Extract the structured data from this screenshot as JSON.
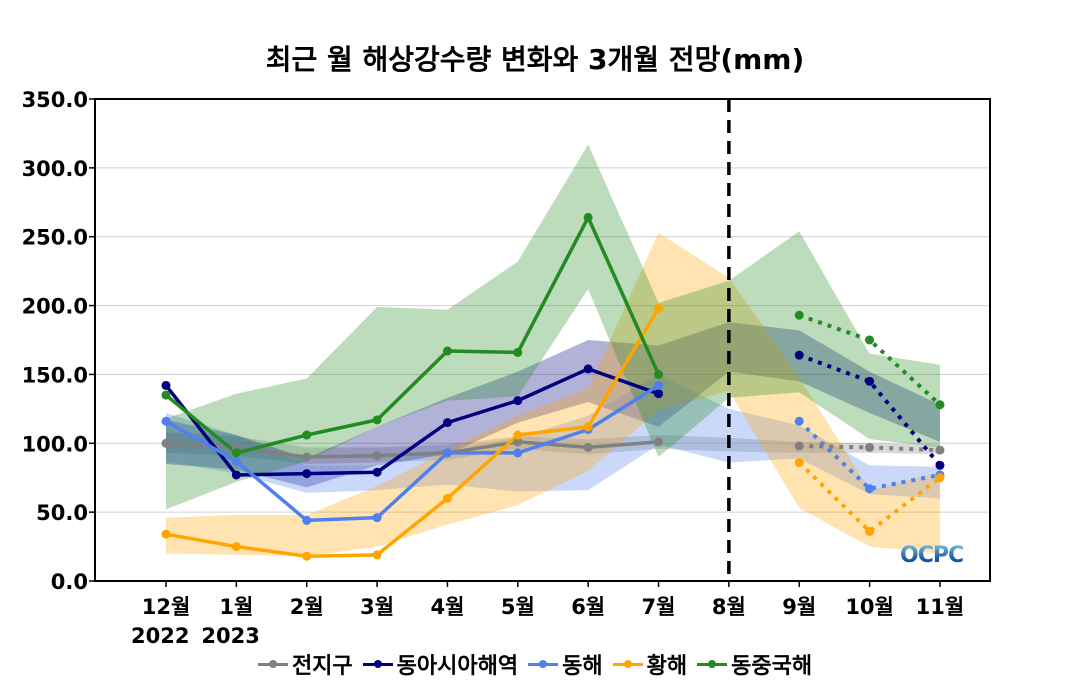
{
  "chart_data": {
    "type": "line",
    "title": "최근 월 해상강수량 변화와 3개월 전망(mm)",
    "xlabel": "",
    "ylabel": "",
    "ylim": [
      0,
      350
    ],
    "yticks": [
      "0.0",
      "50.0",
      "100.0",
      "150.0",
      "200.0",
      "250.0",
      "300.0",
      "350.0"
    ],
    "ytick_values": [
      0,
      50,
      100,
      150,
      200,
      250,
      300,
      350
    ],
    "grid": true,
    "categories": [
      "12월",
      "1월",
      "2월",
      "3월",
      "4월",
      "5월",
      "6월",
      "7월",
      "8월",
      "9월",
      "10월",
      "11월"
    ],
    "year_labels": [
      {
        "index": 0,
        "label": "2022"
      },
      {
        "index": 1,
        "label": "2023"
      }
    ],
    "forecast_divider_category": "8월",
    "observed_range": [
      0,
      7
    ],
    "forecast_range": [
      9,
      11
    ],
    "legend_position": "bottom-center",
    "logo_text": "OCPC",
    "series": [
      {
        "name": "전지구",
        "color": "#808080",
        "values": [
          100,
          97,
          90,
          91,
          93,
          101,
          97,
          101,
          null,
          98,
          97,
          95
        ],
        "band_upper": [
          108,
          105,
          97,
          97,
          99,
          105,
          103,
          106,
          104,
          101,
          100,
          99
        ],
        "band_lower": [
          93,
          91,
          85,
          86,
          88,
          96,
          92,
          96,
          94,
          93,
          93,
          92
        ]
      },
      {
        "name": "동아시아해역",
        "color": "#00007f",
        "values": [
          142,
          77,
          78,
          79,
          115,
          131,
          154,
          136,
          null,
          164,
          145,
          84
        ],
        "band_upper": [
          117,
          106,
          89,
          112,
          133,
          152,
          175,
          171,
          188,
          182,
          152,
          128
        ],
        "band_lower": [
          85,
          81,
          68,
          84,
          92,
          115,
          130,
          112,
          152,
          145,
          122,
          101
        ]
      },
      {
        "name": "동해",
        "color": "#4f7ff0",
        "values": [
          116,
          87,
          44,
          46,
          93,
          93,
          110,
          142,
          null,
          116,
          67,
          77
        ],
        "band_upper": [
          122,
          106,
          84,
          84,
          96,
          104,
          120,
          150,
          125,
          113,
          84,
          83
        ],
        "band_lower": [
          87,
          78,
          64,
          66,
          70,
          65,
          66,
          99,
          86,
          89,
          63,
          60
        ]
      },
      {
        "name": "황해",
        "color": "#ffa500",
        "values": [
          34,
          25,
          18,
          19,
          60,
          106,
          112,
          198,
          null,
          86,
          36,
          75
        ],
        "band_upper": [
          46,
          48,
          48,
          69,
          95,
          120,
          140,
          253,
          220,
          148,
          66,
          79
        ],
        "band_lower": [
          20,
          19,
          18,
          25,
          41,
          55,
          80,
          124,
          138,
          53,
          25,
          20
        ]
      },
      {
        "name": "동중국해",
        "color": "#228b22",
        "values": [
          135,
          93,
          106,
          117,
          167,
          166,
          264,
          150,
          null,
          193,
          175,
          128
        ],
        "band_upper": [
          118,
          136,
          147,
          199,
          197,
          232,
          317,
          202,
          218,
          254,
          165,
          157
        ],
        "band_lower": [
          52,
          72,
          87,
          112,
          131,
          134,
          212,
          90,
          133,
          137,
          103,
          97
        ]
      }
    ]
  }
}
